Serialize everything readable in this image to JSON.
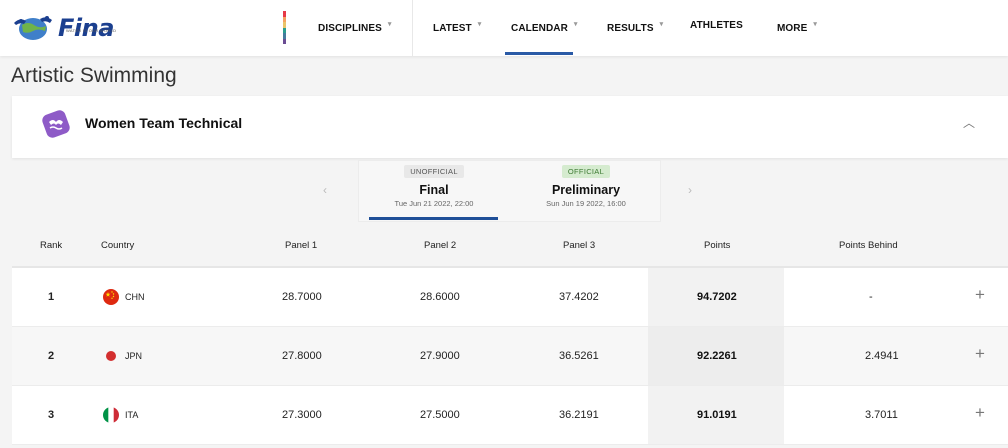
{
  "header": {
    "logo_text": "Fina",
    "logo_tagline": "WATER IS OUR WORLD",
    "nav": [
      {
        "label": "DISCIPLINES",
        "has_caret": true
      },
      {
        "label": "LATEST",
        "has_caret": true
      },
      {
        "label": "CALENDAR",
        "has_caret": true,
        "active": true
      },
      {
        "label": "RESULTS",
        "has_caret": true
      },
      {
        "label": "ATHLETES",
        "has_caret": false
      },
      {
        "label": "MORE",
        "has_caret": true
      }
    ],
    "color_bar": [
      "#e63946",
      "#f4a261",
      "#e9c46a",
      "#2a9d8f",
      "#457b9d",
      "#6a4c93"
    ]
  },
  "page": {
    "title": "Artistic Swimming"
  },
  "event": {
    "name": "Women Team Technical",
    "icon": "artistic-swimming-icon",
    "collapse_icon": "chevron-up-icon"
  },
  "phases": [
    {
      "badge": "UNOFFICIAL",
      "name": "Final",
      "date": "Tue Jun 21 2022, 22:00",
      "active": true
    },
    {
      "badge": "OFFICIAL",
      "name": "Preliminary",
      "date": "Sun Jun 19 2022, 16:00",
      "active": false
    }
  ],
  "nav_arrows": {
    "prev": "‹",
    "next": "›"
  },
  "table": {
    "headers": {
      "rank": "Rank",
      "country": "Country",
      "panel1": "Panel 1",
      "panel2": "Panel 2",
      "panel3": "Panel 3",
      "points": "Points",
      "behind": "Points Behind"
    },
    "rows": [
      {
        "rank": "1",
        "country": "CHN",
        "flag": "china-flag-icon",
        "panel1": "28.7000",
        "panel2": "28.6000",
        "panel3": "37.4202",
        "points": "94.7202",
        "behind": "-"
      },
      {
        "rank": "2",
        "country": "JPN",
        "flag": "japan-flag-icon",
        "panel1": "27.8000",
        "panel2": "27.9000",
        "panel3": "36.5261",
        "points": "92.2261",
        "behind": "2.4941"
      },
      {
        "rank": "3",
        "country": "ITA",
        "flag": "italy-flag-icon",
        "panel1": "27.3000",
        "panel2": "27.5000",
        "panel3": "36.2191",
        "points": "91.0191",
        "behind": "3.7011"
      }
    ],
    "expand_symbol": "+"
  },
  "colors": {
    "brand_blue": "#1b3f8f",
    "active_underline": "#1f4f98",
    "official_green": "#3d7a33",
    "event_purple": "#8e5bc7"
  }
}
